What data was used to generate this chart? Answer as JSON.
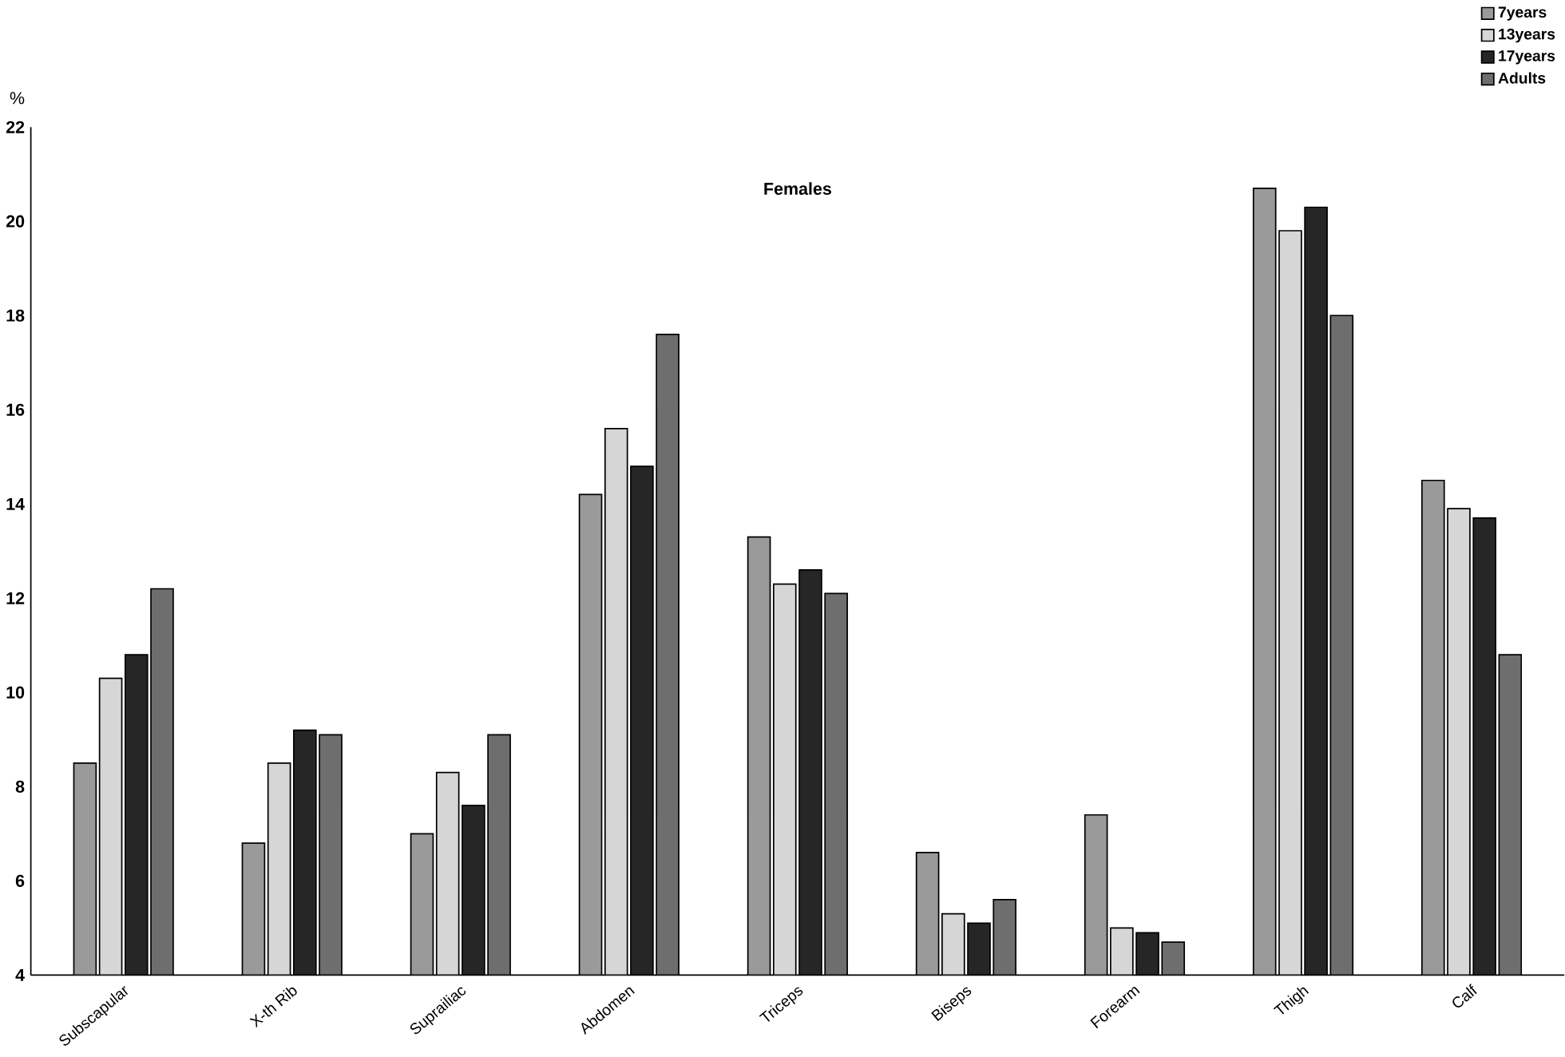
{
  "chart_data": {
    "type": "bar",
    "title": "Females",
    "ylabel": "%",
    "categories": [
      "Subscapular",
      "X-th Rib",
      "Suprailiac",
      "Abdomen",
      "Triceps",
      "Biseps",
      "Forearm",
      "Thigh",
      "Calf"
    ],
    "series": [
      {
        "name": "7years",
        "color": "#9a9a9a",
        "values": [
          8.5,
          6.8,
          7.0,
          14.2,
          13.3,
          6.6,
          7.4,
          20.7,
          14.5
        ]
      },
      {
        "name": "13years",
        "color": "#d6d6d6",
        "values": [
          10.3,
          8.5,
          8.3,
          15.6,
          12.3,
          5.3,
          5.0,
          19.8,
          13.9
        ]
      },
      {
        "name": "17years",
        "color": "#262626",
        "values": [
          10.8,
          9.2,
          7.6,
          14.8,
          12.6,
          5.1,
          4.9,
          20.3,
          13.7
        ]
      },
      {
        "name": "Adults",
        "color": "#6e6e6e",
        "values": [
          12.2,
          9.1,
          9.1,
          17.6,
          12.1,
          5.6,
          4.7,
          18.0,
          10.8
        ]
      }
    ],
    "ylim": [
      4,
      22
    ],
    "yticks": [
      4,
      6,
      8,
      10,
      12,
      14,
      16,
      18,
      20,
      22
    ],
    "grid": false,
    "legend": "top right"
  }
}
